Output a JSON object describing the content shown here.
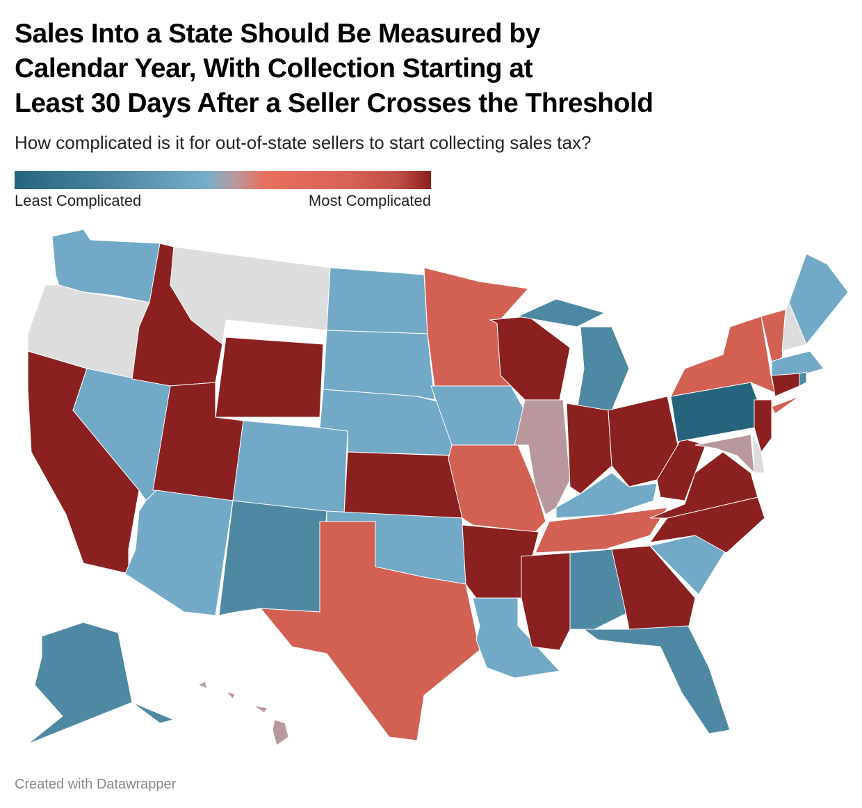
{
  "title": "Sales Into a State Should Be Measured by Calendar Year, With Collection Starting at Least 30 Days After a Seller Crosses the Threshold",
  "title_lines": [
    "Sales Into a State Should Be Measured by",
    "Calendar Year, With Collection Starting at",
    "Least 30 Days After a Seller Crosses the Threshold"
  ],
  "subtitle": "How complicated is it for out-of-state sellers to start collecting sales tax?",
  "legend": {
    "low_label": "Least Complicated",
    "high_label": "Most Complicated"
  },
  "footer": "Created with Datawrapper",
  "colors": {
    "level1": "#26647e",
    "level2": "#4e88a3",
    "level3": "#72a9c6",
    "level4": "#b8989c",
    "level5": "#d26154",
    "level6": "#8b2020",
    "no_data": "#dddddd"
  },
  "states": {
    "PA": "level1",
    "MI": "level2",
    "NM": "level2",
    "AL": "level2",
    "FL": "level2",
    "AK": "level2",
    "RI": "level2",
    "WA": "level3",
    "NV": "level3",
    "AZ": "level3",
    "CO": "level3",
    "ND": "level3",
    "SD": "level3",
    "NE": "level3",
    "IA": "level3",
    "OK": "level3",
    "LA": "level3",
    "KY": "level3",
    "SC": "level3",
    "ME": "level3",
    "MA": "level3",
    "IL": "level4",
    "MD": "level4",
    "HI": "level4",
    "MN": "level5",
    "MO": "level5",
    "TX": "level5",
    "TN": "level5",
    "NY": "level5",
    "VT": "level5",
    "CA": "level6",
    "ID": "level6",
    "UT": "level6",
    "WY": "level6",
    "KS": "level6",
    "AR": "level6",
    "MS": "level6",
    "WI": "level6",
    "IN": "level6",
    "OH": "level6",
    "WV": "level6",
    "VA": "level6",
    "NC": "level6",
    "GA": "level6",
    "NJ": "level6",
    "CT": "level6",
    "OR": "no_data",
    "MT": "no_data",
    "NH": "no_data",
    "DE": "no_data"
  }
}
